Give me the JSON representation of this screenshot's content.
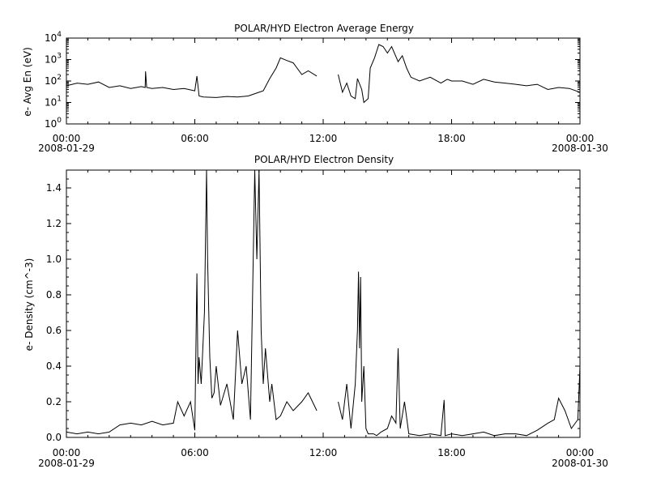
{
  "chart_data": [
    {
      "type": "line",
      "title": "POLAR/HYD  Electron Average Energy",
      "ylabel": "e- Avg En (eV)",
      "yscale": "log",
      "ylim": [
        1,
        10000
      ],
      "y_ticks": [
        {
          "base": "10",
          "exp": "0"
        },
        {
          "base": "10",
          "exp": "1"
        },
        {
          "base": "10",
          "exp": "2"
        },
        {
          "base": "10",
          "exp": "3"
        },
        {
          "base": "10",
          "exp": "4"
        }
      ],
      "y_tick_values": [
        1,
        10,
        100,
        1000,
        10000
      ],
      "xlim": [
        "2008-01-29T00:00",
        "2008-01-30T00:00"
      ],
      "x_ticks": [
        "00:00",
        "06:00",
        "12:00",
        "18:00",
        "00:00"
      ],
      "x_tick_values": [
        0,
        6,
        12,
        18,
        24
      ],
      "date_labels": [
        "2008-01-29",
        "2008-01-30"
      ],
      "series": [
        {
          "segments": [
            {
              "x": [
                0.0,
                0.5,
                1.0,
                1.5,
                2.0,
                2.5,
                3.0,
                3.5,
                3.68,
                3.7,
                3.75,
                4.0,
                4.5,
                5.0,
                5.5,
                6.0,
                6.1,
                6.2,
                6.4,
                7.0,
                7.5,
                8.0,
                8.5,
                9.0,
                9.2,
                9.5,
                9.8,
                10.0,
                10.3,
                10.6,
                11.0,
                11.3,
                11.7
              ],
              "y": [
                60,
                80,
                70,
                90,
                50,
                60,
                45,
                55,
                50,
                280,
                50,
                45,
                50,
                40,
                45,
                35,
                170,
                20,
                18,
                17,
                19,
                18,
                20,
                30,
                35,
                130,
                400,
                1200,
                900,
                700,
                200,
                300,
                170
              ]
            },
            {
              "x": [
                12.7,
                12.9,
                13.1,
                13.3,
                13.5,
                13.6,
                13.8,
                13.9,
                14.1,
                14.2,
                14.4,
                14.6,
                14.8,
                15.0,
                15.2,
                15.5,
                15.7,
                15.9,
                16.1,
                16.5,
                17.0,
                17.5,
                17.8,
                18.0,
                18.5,
                19.0,
                19.5,
                20.0,
                20.5,
                21.0,
                21.5,
                22.0,
                22.5,
                23.0,
                23.5,
                24.0
              ],
              "y": [
                200,
                30,
                80,
                20,
                15,
                130,
                40,
                10,
                15,
                400,
                1200,
                5000,
                4000,
                2000,
                4000,
                800,
                1500,
                400,
                150,
                100,
                150,
                80,
                120,
                100,
                100,
                70,
                120,
                90,
                80,
                70,
                60,
                70,
                40,
                50,
                45,
                30
              ]
            }
          ]
        }
      ]
    },
    {
      "type": "line",
      "title": "POLAR/HYD  Electron Density",
      "ylabel": "e- Density (cm^-3)",
      "yscale": "linear",
      "ylim": [
        0,
        1.5
      ],
      "y_ticks": [
        "0.0",
        "0.2",
        "0.4",
        "0.6",
        "0.8",
        "1.0",
        "1.2",
        "1.4"
      ],
      "y_tick_values": [
        0.0,
        0.2,
        0.4,
        0.6,
        0.8,
        1.0,
        1.2,
        1.4
      ],
      "xlim": [
        "2008-01-29T00:00",
        "2008-01-30T00:00"
      ],
      "x_ticks": [
        "00:00",
        "06:00",
        "12:00",
        "18:00",
        "00:00"
      ],
      "x_tick_values": [
        0,
        6,
        12,
        18,
        24
      ],
      "date_labels": [
        "2008-01-29",
        "2008-01-30"
      ],
      "series": [
        {
          "segments": [
            {
              "x": [
                0.0,
                0.5,
                1.0,
                1.5,
                2.0,
                2.5,
                3.0,
                3.5,
                4.0,
                4.5,
                5.0,
                5.2,
                5.5,
                5.8,
                6.0,
                6.1,
                6.15,
                6.2,
                6.3,
                6.45,
                6.55,
                6.6,
                6.7,
                6.8,
                6.9,
                7.0,
                7.2,
                7.5,
                7.8,
                8.0,
                8.2,
                8.4,
                8.6,
                8.8,
                8.9,
                9.0,
                9.1,
                9.2,
                9.3,
                9.5,
                9.6,
                9.8,
                10.0,
                10.3,
                10.6,
                11.0,
                11.3,
                11.7
              ],
              "y": [
                0.03,
                0.02,
                0.03,
                0.02,
                0.03,
                0.07,
                0.08,
                0.07,
                0.09,
                0.07,
                0.08,
                0.2,
                0.12,
                0.2,
                0.04,
                0.92,
                0.3,
                0.45,
                0.3,
                0.7,
                1.5,
                1.0,
                0.45,
                0.22,
                0.25,
                0.4,
                0.18,
                0.3,
                0.1,
                0.6,
                0.3,
                0.4,
                0.1,
                1.5,
                1.0,
                1.5,
                0.6,
                0.3,
                0.5,
                0.2,
                0.3,
                0.1,
                0.12,
                0.2,
                0.15,
                0.2,
                0.25,
                0.15
              ]
            },
            {
              "x": [
                12.7,
                12.9,
                13.1,
                13.3,
                13.5,
                13.6,
                13.65,
                13.7,
                13.75,
                13.8,
                13.9,
                14.0,
                14.1,
                14.2,
                14.35,
                14.5,
                14.7,
                15.0,
                15.2,
                15.4,
                15.5,
                15.6,
                15.8,
                16.0,
                16.5,
                17.0,
                17.5,
                17.65,
                17.7,
                18.0,
                18.5,
                19.0,
                19.5,
                20.0,
                20.5,
                21.0,
                21.5,
                22.0,
                22.5,
                22.8,
                23.0,
                23.3,
                23.6,
                23.9,
                24.0
              ],
              "y": [
                0.2,
                0.1,
                0.3,
                0.05,
                0.3,
                0.6,
                0.93,
                0.5,
                0.9,
                0.2,
                0.4,
                0.05,
                0.02,
                0.02,
                0.02,
                0.01,
                0.03,
                0.05,
                0.12,
                0.08,
                0.5,
                0.05,
                0.2,
                0.02,
                0.01,
                0.02,
                0.01,
                0.21,
                0.01,
                0.02,
                0.01,
                0.02,
                0.03,
                0.01,
                0.02,
                0.02,
                0.01,
                0.04,
                0.08,
                0.1,
                0.22,
                0.15,
                0.05,
                0.1,
                0.4
              ]
            }
          ]
        }
      ]
    }
  ]
}
